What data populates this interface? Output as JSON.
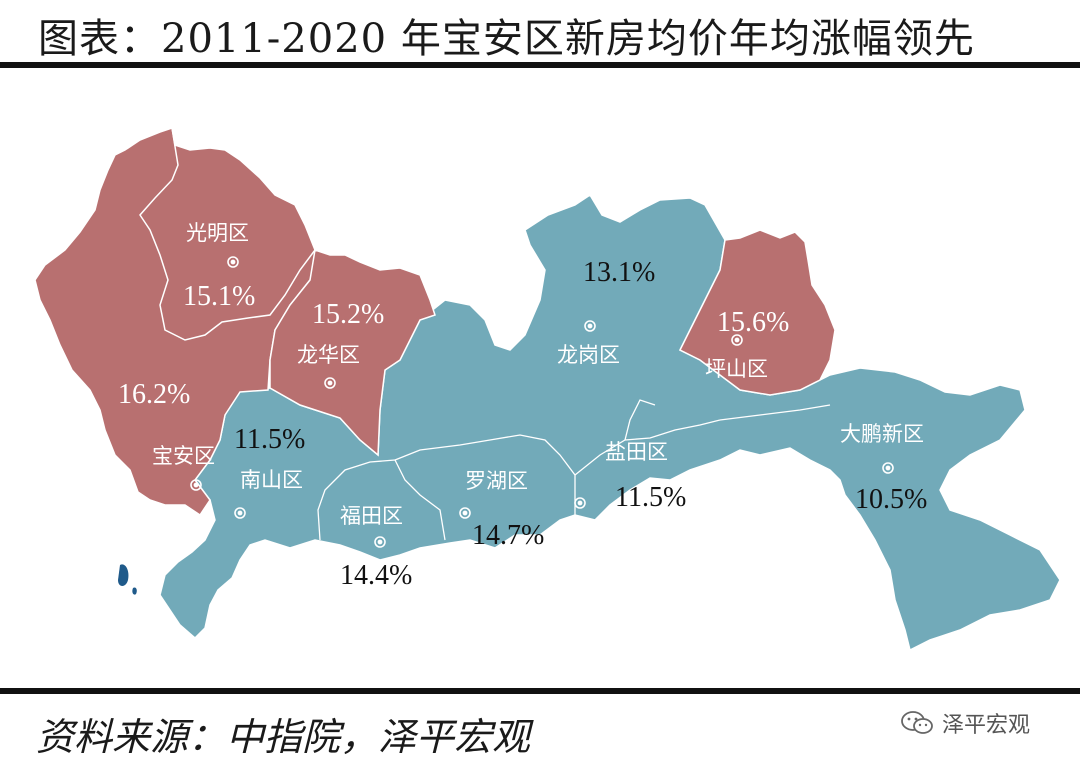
{
  "title": "图表：2011-2020 年宝安区新房均价年均涨幅领先",
  "source": "资料来源：中指院，泽平宏观",
  "watermark": "泽平宏观",
  "colors": {
    "highlight": "#b87070",
    "base": "#72aab9"
  },
  "districts": [
    {
      "name": "光明区",
      "value": "15.1%",
      "group": "highlight"
    },
    {
      "name": "宝安区",
      "value": "16.2%",
      "group": "highlight"
    },
    {
      "name": "龙华区",
      "value": "15.2%",
      "group": "highlight"
    },
    {
      "name": "坪山区",
      "value": "15.6%",
      "group": "highlight"
    },
    {
      "name": "南山区",
      "value": "11.5%",
      "group": "base"
    },
    {
      "name": "福田区",
      "value": "14.4%",
      "group": "base"
    },
    {
      "name": "罗湖区",
      "value": "14.7%",
      "group": "base"
    },
    {
      "name": "盐田区",
      "value": "11.5%",
      "group": "base"
    },
    {
      "name": "龙岗区",
      "value": "13.1%",
      "group": "base"
    },
    {
      "name": "大鹏新区",
      "value": "10.5%",
      "group": "base"
    }
  ]
}
